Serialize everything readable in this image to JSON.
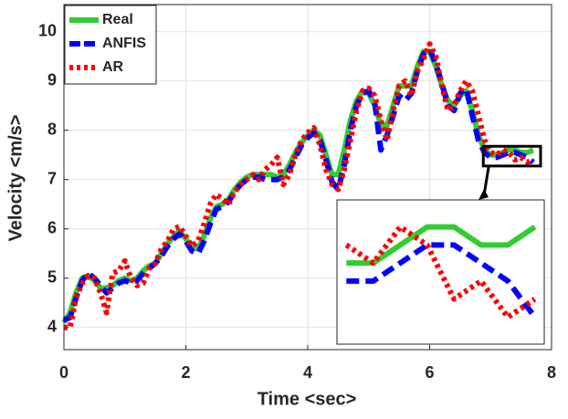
{
  "chart_data": {
    "type": "line",
    "xlabel": "Time <sec>",
    "ylabel": "Velocity <m/s>",
    "x": [
      0,
      0.1,
      0.2,
      0.3,
      0.4,
      0.5,
      0.6,
      0.7,
      0.8,
      0.9,
      1.0,
      1.1,
      1.2,
      1.3,
      1.4,
      1.5,
      1.6,
      1.7,
      1.8,
      1.9,
      2.0,
      2.1,
      2.2,
      2.3,
      2.4,
      2.5,
      2.6,
      2.7,
      2.8,
      2.9,
      3.0,
      3.1,
      3.2,
      3.3,
      3.4,
      3.5,
      3.6,
      3.7,
      3.8,
      3.9,
      4.0,
      4.1,
      4.2,
      4.3,
      4.4,
      4.5,
      4.6,
      4.7,
      4.8,
      4.9,
      5.0,
      5.1,
      5.2,
      5.3,
      5.4,
      5.5,
      5.6,
      5.7,
      5.8,
      5.9,
      6.0,
      6.1,
      6.2,
      6.3,
      6.4,
      6.5,
      6.6,
      6.7,
      6.8,
      6.9,
      7.0,
      7.1,
      7.2,
      7.3,
      7.4,
      7.5,
      7.6,
      7.7
    ],
    "series": [
      {
        "name": "Real",
        "color": "#33cc33",
        "values": [
          4.1,
          4.3,
          4.7,
          5.0,
          5.05,
          4.95,
          4.8,
          4.8,
          4.85,
          4.95,
          5.0,
          4.95,
          5.0,
          5.15,
          5.25,
          5.3,
          5.5,
          5.7,
          5.85,
          5.95,
          5.8,
          5.6,
          5.6,
          5.85,
          6.2,
          6.45,
          6.5,
          6.6,
          6.8,
          6.95,
          7.05,
          7.1,
          7.1,
          7.1,
          7.1,
          7.05,
          7.1,
          7.3,
          7.55,
          7.75,
          7.9,
          8.0,
          7.9,
          7.5,
          7.1,
          7.1,
          7.6,
          8.2,
          8.6,
          8.8,
          8.75,
          8.5,
          8.1,
          8.1,
          8.5,
          8.9,
          8.9,
          8.9,
          9.3,
          9.6,
          9.6,
          9.3,
          8.9,
          8.6,
          8.5,
          8.7,
          8.8,
          8.4,
          7.9,
          7.6,
          7.5,
          7.5,
          7.55,
          7.6,
          7.6,
          7.55,
          7.55,
          7.6
        ]
      },
      {
        "name": "ANFIS",
        "color": "#0000ff",
        "values": [
          4.15,
          4.2,
          4.6,
          4.95,
          5.1,
          5.0,
          4.85,
          4.7,
          4.8,
          4.9,
          4.95,
          4.9,
          4.95,
          5.1,
          5.2,
          5.3,
          5.45,
          5.65,
          5.8,
          5.9,
          5.75,
          5.55,
          5.5,
          5.75,
          6.1,
          6.4,
          6.45,
          6.55,
          6.75,
          6.9,
          7.0,
          7.05,
          7.05,
          7.0,
          7.0,
          7.0,
          7.05,
          7.2,
          7.45,
          7.7,
          7.85,
          7.95,
          7.8,
          7.4,
          6.95,
          6.8,
          7.3,
          8.0,
          8.5,
          8.75,
          8.8,
          8.55,
          7.6,
          7.9,
          8.3,
          8.7,
          8.6,
          8.75,
          9.2,
          9.55,
          9.65,
          9.35,
          8.95,
          8.5,
          8.4,
          8.75,
          8.85,
          8.3,
          7.8,
          7.55,
          7.45,
          7.45,
          7.5,
          7.55,
          7.55,
          7.5,
          7.45,
          7.35
        ]
      },
      {
        "name": "AR",
        "color": "#ff0000",
        "values": [
          4.0,
          4.0,
          4.6,
          4.9,
          5.05,
          5.0,
          4.7,
          4.3,
          5.1,
          5.15,
          5.35,
          5.0,
          4.85,
          4.9,
          5.2,
          5.3,
          5.6,
          5.75,
          6.0,
          6.05,
          5.85,
          5.65,
          5.75,
          6.1,
          6.5,
          6.7,
          6.6,
          6.5,
          6.75,
          6.9,
          7.0,
          7.1,
          7.0,
          7.2,
          7.3,
          7.45,
          6.9,
          7.1,
          7.5,
          7.8,
          7.95,
          8.05,
          7.7,
          7.2,
          6.9,
          6.8,
          7.2,
          7.8,
          8.4,
          8.8,
          8.85,
          8.7,
          8.2,
          7.8,
          8.4,
          8.9,
          9.0,
          8.7,
          9.2,
          9.45,
          9.75,
          9.5,
          8.9,
          8.4,
          8.5,
          8.8,
          9.0,
          8.8,
          8.3,
          7.8,
          7.55,
          7.5,
          7.6,
          7.55,
          7.4,
          7.45,
          7.35,
          7.4
        ]
      }
    ],
    "xlim": [
      0,
      8
    ],
    "ylim": [
      3.55,
      10.55
    ],
    "xticks": [
      0,
      2,
      4,
      6,
      8
    ],
    "yticks": [
      4,
      5,
      6,
      7,
      8,
      9,
      10
    ],
    "grid": true,
    "legend": "upper-left"
  }
}
